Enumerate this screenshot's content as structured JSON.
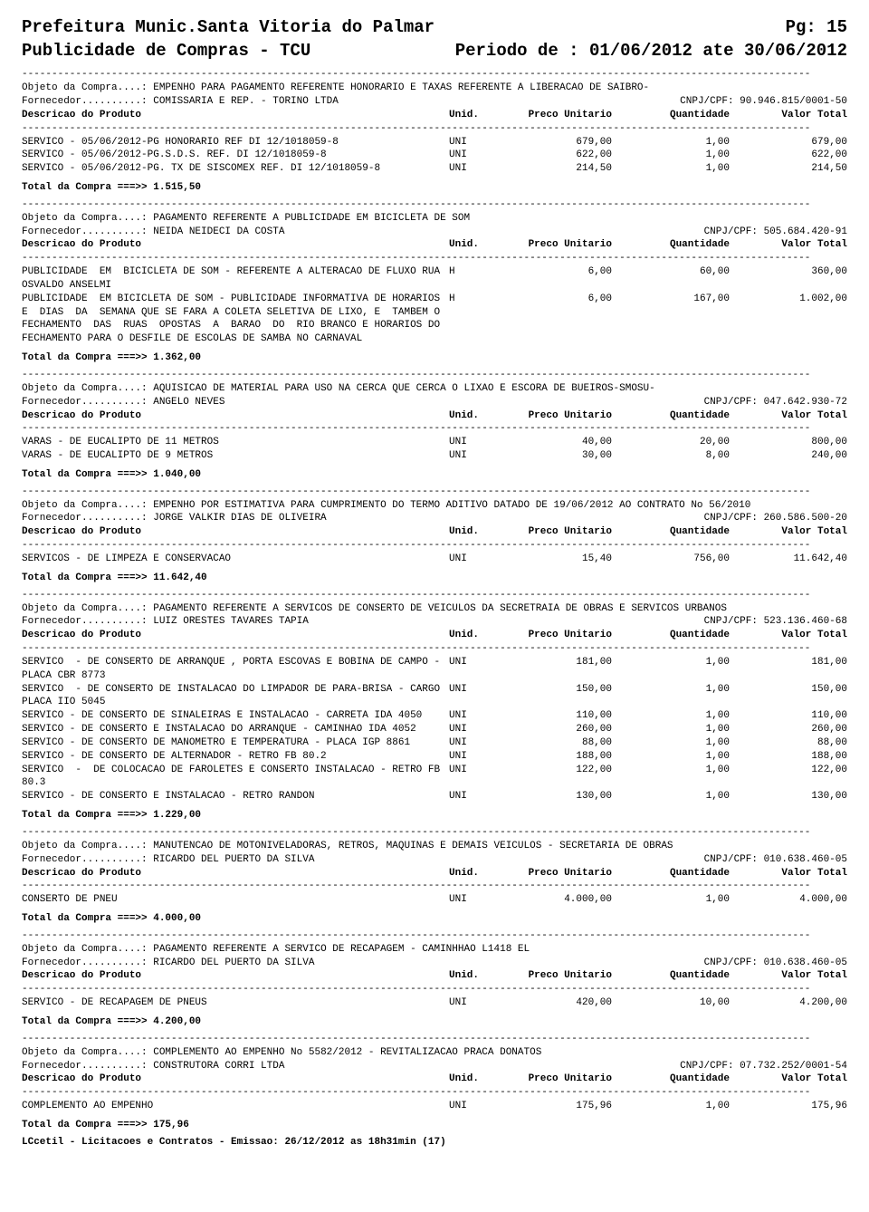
{
  "header": {
    "municipality": "Prefeitura Munic.Santa Vitoria do Palmar",
    "page_label": "Pg:   15",
    "report_title": "Publicidade de Compras - TCU",
    "period": "Periodo de : 01/06/2012   ate 30/06/2012"
  },
  "labels": {
    "objeto": "Objeto da Compra....: ",
    "fornecedor": "Fornecedor..........: ",
    "cnpj": "CNPJ/CPF: ",
    "desc_header": "Descricao do Produto",
    "unid": "Unid.",
    "preco": "Preco Unitario",
    "qtd": "Quantidade",
    "total": "Valor Total",
    "total_compra": "Total da Compra ===>> "
  },
  "dash_line": "------------------------------------------------------------------------------------------------------------------------------------",
  "sections": [
    {
      "objeto": "EMPENHO PARA PAGAMENTO REFERENTE HONORARIO E TAXAS REFERENTE A LIBERACAO DE SAIBRO-",
      "fornecedor": "COMISSARIA E REP. - TORINO LTDA",
      "cnpj": "90.946.815/0001-50",
      "lines": [
        {
          "desc": "SERVICO - 05/06/2012-PG HONORARIO REF DI 12/1018059-8",
          "unid": "UNI",
          "preco": "679,00",
          "qtd": "1,00",
          "total": "679,00"
        },
        {
          "desc": "SERVICO - 05/06/2012-PG.S.D.S. REF. DI 12/1018059-8",
          "unid": "UNI",
          "preco": "622,00",
          "qtd": "1,00",
          "total": "622,00"
        },
        {
          "desc": "SERVICO - 05/06/2012-PG. TX DE SISCOMEX REF. DI 12/1018059-8",
          "unid": "UNI",
          "preco": "214,50",
          "qtd": "1,00",
          "total": "214,50"
        }
      ],
      "total": "1.515,50"
    },
    {
      "objeto": "PAGAMENTO REFERENTE A PUBLICIDADE EM BICICLETA DE SOM",
      "fornecedor": "NEIDA NEIDECI DA COSTA",
      "cnpj": "505.684.420-91",
      "lines": [
        {
          "desc": "PUBLICIDADE  EM  BICICLETA DE SOM - REFERENTE A ALTERACAO DE FLUXO RUA",
          "unid": "H",
          "preco": "6,00",
          "qtd": "60,00",
          "total": "360,00",
          "extra": "OSVALDO ANSELMI"
        },
        {
          "desc": "PUBLICIDADE  EM BICICLETA DE SOM - PUBLICIDADE INFORMATIVA DE HORARIOS",
          "unid": "H",
          "preco": "6,00",
          "qtd": "167,00",
          "total": "1.002,00",
          "extra": "E  DIAS  DA  SEMANA QUE SE FARA A COLETA SELETIVA DE LIXO, E  TAMBEM O\nFECHAMENTO  DAS  RUAS  OPOSTAS  A  BARAO  DO  RIO BRANCO E HORARIOS DO\nFECHAMENTO PARA O DESFILE DE ESCOLAS DE SAMBA NO CARNAVAL"
        }
      ],
      "total": "1.362,00"
    },
    {
      "objeto": "AQUISICAO DE MATERIAL PARA USO NA CERCA QUE CERCA O LIXAO E ESCORA DE BUEIROS-SMOSU-",
      "fornecedor": "ANGELO NEVES",
      "cnpj": "047.642.930-72",
      "lines": [
        {
          "desc": "VARAS - DE EUCALIPTO DE 11 METROS",
          "unid": "UNI",
          "preco": "40,00",
          "qtd": "20,00",
          "total": "800,00"
        },
        {
          "desc": "VARAS - DE EUCALIPTO DE 9 METROS",
          "unid": "UNI",
          "preco": "30,00",
          "qtd": "8,00",
          "total": "240,00"
        }
      ],
      "total": "1.040,00"
    },
    {
      "objeto": "EMPENHO POR ESTIMATIVA PARA CUMPRIMENTO DO TERMO ADITIVO DATADO DE 19/06/2012 AO CONTRATO No 56/2010",
      "fornecedor": "JORGE VALKIR DIAS DE OLIVEIRA",
      "cnpj": "260.586.500-20",
      "lines": [
        {
          "desc": "SERVICOS - DE LIMPEZA E CONSERVACAO",
          "unid": "UNI",
          "preco": "15,40",
          "qtd": "756,00",
          "total": "11.642,40"
        }
      ],
      "total": "11.642,40"
    },
    {
      "objeto": "PAGAMENTO REFERENTE A SERVICOS DE CONSERTO DE VEICULOS DA SECRETRAIA DE OBRAS E SERVICOS URBANOS",
      "fornecedor": "LUIZ ORESTES TAVARES TAPIA",
      "cnpj": "523.136.460-68",
      "lines": [
        {
          "desc": "SERVICO  - DE CONSERTO DE ARRANQUE , PORTA ESCOVAS E BOBINA DE CAMPO -",
          "unid": "UNI",
          "preco": "181,00",
          "qtd": "1,00",
          "total": "181,00",
          "extra": "PLACA CBR 8773"
        },
        {
          "desc": "SERVICO  - DE CONSERTO DE INSTALACAO DO LIMPADOR DE PARA-BRISA - CARGO",
          "unid": "UNI",
          "preco": "150,00",
          "qtd": "1,00",
          "total": "150,00",
          "extra": "PLACA IIO 5045"
        },
        {
          "desc": "SERVICO - DE CONSERTO DE SINALEIRAS E INSTALACAO - CARRETA IDA 4050",
          "unid": "UNI",
          "preco": "110,00",
          "qtd": "1,00",
          "total": "110,00"
        },
        {
          "desc": "SERVICO - DE CONSERTO E INSTALACAO DO ARRANQUE - CAMINHAO IDA 4052",
          "unid": "UNI",
          "preco": "260,00",
          "qtd": "1,00",
          "total": "260,00"
        },
        {
          "desc": "SERVICO - DE CONSERTO DE MANOMETRO E TEMPERATURA - PLACA IGP 8861",
          "unid": "UNI",
          "preco": "88,00",
          "qtd": "1,00",
          "total": "88,00"
        },
        {
          "desc": "SERVICO - DE CONSERTO DE ALTERNADOR - RETRO FB 80.2",
          "unid": "UNI",
          "preco": "188,00",
          "qtd": "1,00",
          "total": "188,00"
        },
        {
          "desc": "SERVICO  -  DE COLOCACAO DE FAROLETES E CONSERTO INSTALACAO - RETRO FB",
          "unid": "UNI",
          "preco": "122,00",
          "qtd": "1,00",
          "total": "122,00",
          "extra": "80.3"
        },
        {
          "desc": "SERVICO - DE CONSERTO E INSTALACAO - RETRO RANDON",
          "unid": "UNI",
          "preco": "130,00",
          "qtd": "1,00",
          "total": "130,00"
        }
      ],
      "total": "1.229,00"
    },
    {
      "objeto": "MANUTENCAO DE MOTONIVELADORAS, RETROS, MAQUINAS E DEMAIS VEICULOS -  SECRETARIA DE OBRAS",
      "fornecedor": "RICARDO DEL PUERTO DA SILVA",
      "cnpj": "010.638.460-05",
      "lines": [
        {
          "desc": "CONSERTO DE PNEU",
          "unid": "UNI",
          "preco": "4.000,00",
          "qtd": "1,00",
          "total": "4.000,00"
        }
      ],
      "total": "4.000,00"
    },
    {
      "objeto": "PAGAMENTO REFERENTE A SERVICO DE RECAPAGEM - CAMINHHAO L1418 EL",
      "fornecedor": "RICARDO DEL PUERTO DA SILVA",
      "cnpj": "010.638.460-05",
      "lines": [
        {
          "desc": "SERVICO - DE RECAPAGEM DE PNEUS",
          "unid": "UNI",
          "preco": "420,00",
          "qtd": "10,00",
          "total": "4.200,00"
        }
      ],
      "total": "4.200,00"
    },
    {
      "objeto": "COMPLEMENTO AO EMPENHO No 5582/2012 - REVITALIZACAO PRACA DONATOS",
      "fornecedor": "CONSTRUTORA CORRI LTDA",
      "cnpj": "07.732.252/0001-54",
      "lines": [
        {
          "desc": "COMPLEMENTO AO EMPENHO",
          "unid": "UNI",
          "preco": "175,96",
          "qtd": "1,00",
          "total": "175,96"
        }
      ],
      "total": "175,96"
    }
  ],
  "footer": "LCcetil - Licitacoes e Contratos - Emissao: 26/12/2012 as 18h31min (17)"
}
